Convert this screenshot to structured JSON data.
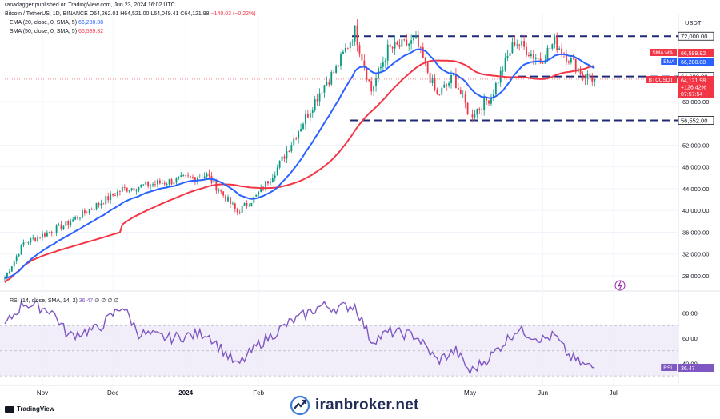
{
  "header": {
    "publisher": "ranadagger published on TradingView.com, Jun 23, 2024 16:02 UTC",
    "symbol": "Bitcoin / TetherUS, 1D, BINANCE",
    "ohlc": "O64,262.01 H64,521.00 L64,049.41 C64,121.98",
    "change": "−140.03 (−0.22%)"
  },
  "indicators": {
    "ema_label": "EMA (20, close, 0, SMA, 5)",
    "ema_value": "66,280.08",
    "sma_label": "SMA (50, close, 0, SMA, 5)",
    "sma_value": "66,589.82",
    "rsi_label": "RSI (14, close, SMA, 14, 2)",
    "rsi_value": "36.47",
    "rsi_extra": "∅ ∅ ∅ ∅"
  },
  "axis": {
    "currency": "USDT"
  },
  "price_tags": {
    "sma_tag": "SMA:MA",
    "ema_tag": "EMA",
    "symbol_tag": "BTCUSDT",
    "sma_value": "66,589.82",
    "ema_value": "66,280.08",
    "last_price": "64,121.98",
    "last_change": "+126.42%",
    "countdown": "07:57:54",
    "rsi_tag": "RSI",
    "rsi_value": "36.47"
  },
  "footer": {
    "brand": "TradingView",
    "watermark": "iranbroker.net"
  },
  "colors": {
    "up": "#089981",
    "down": "#f23645",
    "ema": "#2962ff",
    "sma": "#f23645",
    "rsi": "#7e57c2",
    "level": "#1e2a78"
  },
  "chart_data": {
    "type": "candlestick",
    "price_axis": {
      "ticks": [
        28000,
        32000,
        36000,
        40000,
        44000,
        48000,
        52000,
        60000
      ],
      "tick_labels": [
        "28,000.00",
        "32,000.00",
        "36,000.00",
        "40,000.00",
        "44,000.00",
        "48,000.00",
        "52,000.00",
        "60,000.00"
      ],
      "range": [
        25500,
        76000
      ]
    },
    "levels": [
      {
        "value": 72000,
        "label": "72,000.00"
      },
      {
        "value": 64602,
        "label": "64,602.00"
      },
      {
        "value": 56552,
        "label": "56,552.00"
      }
    ],
    "time_axis": {
      "labels": [
        "Nov",
        "Dec",
        "2024",
        "Feb",
        "May",
        "Jun",
        "Jul"
      ],
      "dates": [
        "2023-11-01",
        "2023-12-01",
        "2024-01-01",
        "2024-02-01",
        "2024-05-01",
        "2024-06-01",
        "2024-07-01"
      ]
    },
    "date_range": [
      "2023-10-16",
      "2024-07-28"
    ],
    "series_close_anchors": [
      [
        "2023-10-16",
        27600
      ],
      [
        "2023-10-24",
        34000
      ],
      [
        "2023-11-10",
        37200
      ],
      [
        "2023-12-05",
        43900
      ],
      [
        "2024-01-10",
        46500
      ],
      [
        "2024-01-23",
        39700
      ],
      [
        "2024-01-31",
        42600
      ],
      [
        "2024-02-09",
        47800
      ],
      [
        "2024-02-28",
        62500
      ],
      [
        "2024-03-05",
        66000
      ],
      [
        "2024-03-13",
        73000
      ],
      [
        "2024-03-20",
        62000
      ],
      [
        "2024-03-27",
        69500
      ],
      [
        "2024-04-08",
        71000
      ],
      [
        "2024-04-17",
        61000
      ],
      [
        "2024-04-24",
        64500
      ],
      [
        "2024-05-01",
        57400
      ],
      [
        "2024-05-10",
        61000
      ],
      [
        "2024-05-20",
        71200
      ],
      [
        "2024-05-31",
        67500
      ],
      [
        "2024-06-06",
        71000
      ],
      [
        "2024-06-12",
        68000
      ],
      [
        "2024-06-18",
        65000
      ],
      [
        "2024-06-23",
        64122
      ]
    ],
    "rsi": {
      "ticks": [
        40,
        60,
        80
      ],
      "tick_labels": [
        "40.00",
        "60.00",
        "80.00"
      ],
      "upper_band": 70,
      "lower_band": 30,
      "mid": 50,
      "anchors": [
        [
          "2023-10-16",
          70
        ],
        [
          "2023-10-24",
          88
        ],
        [
          "2023-11-05",
          82
        ],
        [
          "2023-11-12",
          62
        ],
        [
          "2023-11-25",
          68
        ],
        [
          "2023-12-05",
          86
        ],
        [
          "2023-12-12",
          64
        ],
        [
          "2023-12-25",
          60
        ],
        [
          "2024-01-10",
          64
        ],
        [
          "2024-01-23",
          38
        ],
        [
          "2024-02-01",
          55
        ],
        [
          "2024-02-14",
          72
        ],
        [
          "2024-02-28",
          86
        ],
        [
          "2024-03-05",
          84
        ],
        [
          "2024-03-13",
          86
        ],
        [
          "2024-03-20",
          58
        ],
        [
          "2024-03-28",
          65
        ],
        [
          "2024-04-08",
          62
        ],
        [
          "2024-04-17",
          42
        ],
        [
          "2024-04-25",
          50
        ],
        [
          "2024-05-01",
          33
        ],
        [
          "2024-05-10",
          46
        ],
        [
          "2024-05-21",
          67
        ],
        [
          "2024-06-01",
          59
        ],
        [
          "2024-06-06",
          62
        ],
        [
          "2024-06-12",
          46
        ],
        [
          "2024-06-18",
          39
        ],
        [
          "2024-06-23",
          36.47
        ]
      ]
    }
  }
}
